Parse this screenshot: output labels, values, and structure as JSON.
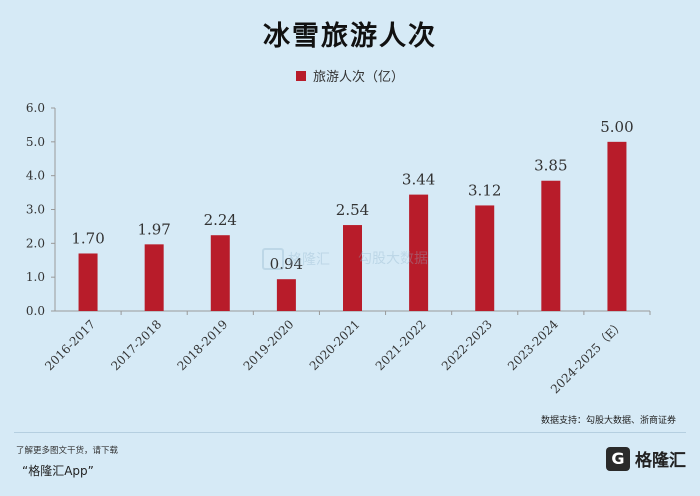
{
  "chart_data": {
    "type": "bar",
    "title": "冰雪旅游人次",
    "legend": "旅游人次（亿）",
    "legend_position": "top",
    "categories": [
      "2016-2017",
      "2017-2018",
      "2018-2019",
      "2019-2020",
      "2020-2021",
      "2021-2022",
      "2022-2023",
      "2023-2024",
      "2024-2025（E）"
    ],
    "values": [
      1.7,
      1.97,
      2.24,
      0.94,
      2.54,
      3.44,
      3.12,
      3.85,
      5.0
    ],
    "data_labels": [
      "1.70",
      "1.97",
      "2.24",
      "0.94",
      "2.54",
      "3.44",
      "3.12",
      "3.85",
      "5.00"
    ],
    "ylim": [
      0,
      6
    ],
    "yticks": [
      "0.0",
      "1.0",
      "2.0",
      "3.0",
      "4.0",
      "5.0",
      "6.0"
    ],
    "xlabel": "",
    "ylabel": "",
    "grid": false,
    "bar_color": "#b81c2a"
  },
  "source": "数据支持：勾股大数据、浙商证券",
  "watermarks": [
    "格隆汇",
    "勾股大数据"
  ],
  "footer": {
    "line1": "了解更多图文干货，请下载",
    "line2": "“格隆汇App”"
  },
  "logo": {
    "mark": "G",
    "text": "格隆汇"
  }
}
